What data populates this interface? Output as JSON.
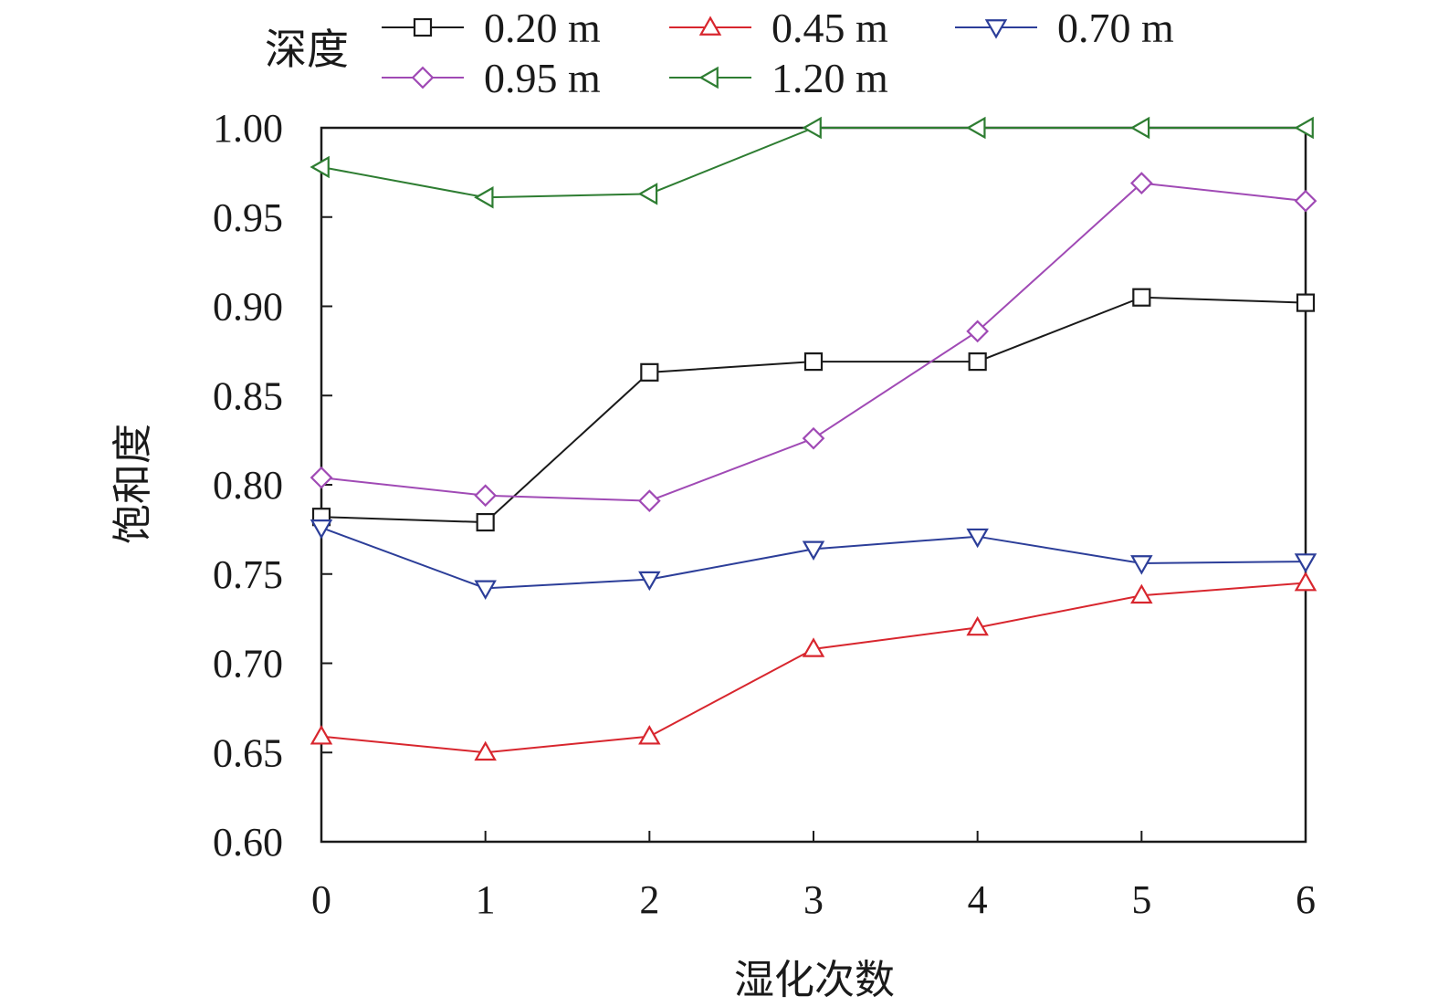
{
  "chart_data": {
    "type": "line",
    "title": "",
    "xlabel": "湿化次数",
    "ylabel": "饱和度",
    "x": [
      0,
      1,
      2,
      3,
      4,
      5,
      6
    ],
    "xlim": [
      0,
      6
    ],
    "ylim": [
      0.6,
      1.0
    ],
    "x_ticks": [
      "0",
      "1",
      "2",
      "3",
      "4",
      "5",
      "6"
    ],
    "y_ticks": [
      "0.60",
      "0.65",
      "0.70",
      "0.75",
      "0.80",
      "0.85",
      "0.90",
      "0.95",
      "1.00"
    ],
    "grid": false,
    "legend": {
      "title": "深度",
      "placement": "top"
    },
    "series": [
      {
        "name": "0.20 m",
        "color": "#1a1a1a",
        "marker": "square",
        "values": [
          0.782,
          0.779,
          0.863,
          0.869,
          0.869,
          0.905,
          0.902
        ]
      },
      {
        "name": "0.45 m",
        "color": "#d8262e",
        "marker": "triangle-up",
        "values": [
          0.659,
          0.65,
          0.659,
          0.708,
          0.72,
          0.738,
          0.745
        ]
      },
      {
        "name": "0.70 m",
        "color": "#2c3e99",
        "marker": "triangle-down",
        "values": [
          0.776,
          0.742,
          0.747,
          0.764,
          0.771,
          0.756,
          0.757
        ]
      },
      {
        "name": "0.95 m",
        "color": "#a04ab5",
        "marker": "diamond",
        "values": [
          0.804,
          0.794,
          0.791,
          0.826,
          0.886,
          0.969,
          0.959
        ]
      },
      {
        "name": "1.20 m",
        "color": "#2e7d32",
        "marker": "triangle-left",
        "values": [
          0.978,
          0.961,
          0.963,
          1.0,
          1.0,
          1.0,
          1.0
        ]
      }
    ]
  }
}
